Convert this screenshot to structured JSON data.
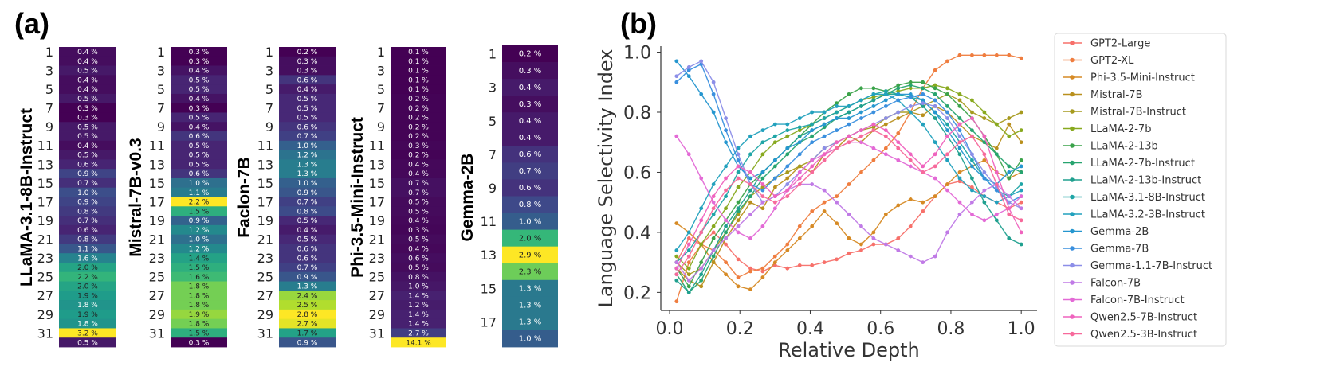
{
  "figure": {
    "panel_a_label": "(a)",
    "panel_b_label": "(b)"
  },
  "chart_data": [
    {
      "type": "heatmap",
      "title": "LLaMA-3.1-8B-Instruct",
      "row_tick_labels": [
        "1",
        "3",
        "5",
        "7",
        "9",
        "11",
        "13",
        "15",
        "17",
        "19",
        "21",
        "23",
        "25",
        "27",
        "29",
        "31"
      ],
      "values": [
        0.4,
        0.4,
        0.5,
        0.4,
        0.4,
        0.5,
        0.3,
        0.3,
        0.5,
        0.5,
        0.4,
        0.5,
        0.6,
        0.9,
        0.7,
        1.0,
        0.9,
        0.8,
        0.7,
        0.6,
        0.8,
        1.1,
        1.6,
        2.0,
        2.2,
        2.0,
        1.9,
        1.8,
        1.9,
        1.8,
        3.2,
        0.5
      ],
      "labels": [
        "0.4 %",
        "0.4 %",
        "0.5 %",
        "0.4 %",
        "0.4 %",
        "0.5 %",
        "0.3 %",
        "0.3 %",
        "0.5 %",
        "0.5 %",
        "0.4 %",
        "0.5 %",
        "0.6 %",
        "0.9 %",
        "0.7 %",
        "1.0 %",
        "0.9 %",
        "0.8 %",
        "0.7 %",
        "0.6 %",
        "0.8 %",
        "1.1 %",
        "1.6 %",
        "2.0 %",
        "2.2 %",
        "2.0 %",
        "1.9 %",
        "1.8 %",
        "1.9 %",
        "1.8 %",
        "3.2 %",
        "0.5 %"
      ]
    },
    {
      "type": "heatmap",
      "title": "Mistral-7B-v0.3",
      "row_tick_labels": [
        "1",
        "3",
        "5",
        "7",
        "9",
        "11",
        "13",
        "15",
        "17",
        "19",
        "21",
        "23",
        "25",
        "27",
        "29",
        "31"
      ],
      "values": [
        0.3,
        0.3,
        0.4,
        0.5,
        0.5,
        0.4,
        0.3,
        0.5,
        0.4,
        0.6,
        0.5,
        0.5,
        0.5,
        0.6,
        1.0,
        1.1,
        2.2,
        1.5,
        0.9,
        1.2,
        1.0,
        1.2,
        1.4,
        1.5,
        1.6,
        1.8,
        1.8,
        1.8,
        1.9,
        1.8,
        1.5,
        0.3
      ],
      "labels": [
        "0.3 %",
        "0.3 %",
        "0.4 %",
        "0.5 %",
        "0.5 %",
        "0.4 %",
        "0.3 %",
        "0.5 %",
        "0.4 %",
        "0.6 %",
        "0.5 %",
        "0.5 %",
        "0.5 %",
        "0.6 %",
        "1.0 %",
        "1.1 %",
        "2.2 %",
        "1.5 %",
        "0.9 %",
        "1.2 %",
        "1.0 %",
        "1.2 %",
        "1.4 %",
        "1.5 %",
        "1.6 %",
        "1.8 %",
        "1.8 %",
        "1.8 %",
        "1.9 %",
        "1.8 %",
        "1.5 %",
        "0.3 %"
      ]
    },
    {
      "type": "heatmap",
      "title": "Faclon-7B",
      "row_tick_labels": [
        "1",
        "3",
        "5",
        "7",
        "9",
        "11",
        "13",
        "15",
        "17",
        "19",
        "21",
        "23",
        "25",
        "27",
        "29",
        "31"
      ],
      "values": [
        0.2,
        0.3,
        0.3,
        0.6,
        0.4,
        0.5,
        0.5,
        0.5,
        0.6,
        0.7,
        1.0,
        1.2,
        1.3,
        1.3,
        1.0,
        0.9,
        0.7,
        0.8,
        0.5,
        0.4,
        0.5,
        0.6,
        0.6,
        0.7,
        0.9,
        1.3,
        2.4,
        2.5,
        2.8,
        2.7,
        1.7,
        0.9
      ],
      "labels": [
        "0.2 %",
        "0.3 %",
        "0.3 %",
        "0.6 %",
        "0.4 %",
        "0.5 %",
        "0.5 %",
        "0.5 %",
        "0.6 %",
        "0.7 %",
        "1.0 %",
        "1.2 %",
        "1.3 %",
        "1.3 %",
        "1.0 %",
        "0.9 %",
        "0.7 %",
        "0.8 %",
        "0.5 %",
        "0.4 %",
        "0.5 %",
        "0.6 %",
        "0.6 %",
        "0.7 %",
        "0.9 %",
        "1.3 %",
        "2.4 %",
        "2.5 %",
        "2.8 %",
        "2.7 %",
        "1.7 %",
        "0.9 %"
      ]
    },
    {
      "type": "heatmap",
      "title": "Phi-3.5-Mini-Instruct",
      "row_tick_labels": [
        "1",
        "3",
        "5",
        "7",
        "9",
        "11",
        "13",
        "15",
        "17",
        "19",
        "21",
        "23",
        "25",
        "27",
        "29",
        "31"
      ],
      "values": [
        0.1,
        0.1,
        0.1,
        0.1,
        0.1,
        0.2,
        0.2,
        0.2,
        0.2,
        0.2,
        0.3,
        0.2,
        0.4,
        0.4,
        0.7,
        0.7,
        0.5,
        0.5,
        0.4,
        0.3,
        0.5,
        0.4,
        0.6,
        0.5,
        0.8,
        1.0,
        1.4,
        1.2,
        1.4,
        1.4,
        2.7,
        14.1
      ],
      "labels": [
        "0.1 %",
        "0.1 %",
        "0.1 %",
        "0.1 %",
        "0.1 %",
        "0.2 %",
        "0.2 %",
        "0.2 %",
        "0.2 %",
        "0.2 %",
        "0.3 %",
        "0.2 %",
        "0.4 %",
        "0.4 %",
        "0.7 %",
        "0.7 %",
        "0.5 %",
        "0.5 %",
        "0.4 %",
        "0.3 %",
        "0.5 %",
        "0.4 %",
        "0.6 %",
        "0.5 %",
        "0.8 %",
        "1.0 %",
        "1.4 %",
        "1.2 %",
        "1.4 %",
        "1.4 %",
        "2.7 %",
        "14.1 %"
      ]
    },
    {
      "type": "heatmap",
      "title": "Gemma-2B",
      "row_tick_labels": [
        "1",
        "3",
        "5",
        "7",
        "9",
        "11",
        "13",
        "15",
        "17"
      ],
      "values": [
        0.2,
        0.3,
        0.4,
        0.3,
        0.4,
        0.4,
        0.6,
        0.7,
        0.6,
        0.8,
        1.0,
        2.0,
        2.9,
        2.3,
        1.3,
        1.3,
        1.3,
        1.0
      ],
      "labels": [
        "0.2 %",
        "0.3 %",
        "0.4 %",
        "0.3 %",
        "0.4 %",
        "0.4 %",
        "0.6 %",
        "0.7 %",
        "0.6 %",
        "0.8 %",
        "1.0 %",
        "2.0 %",
        "2.9 %",
        "2.3 %",
        "1.3 %",
        "1.3 %",
        "1.3 %",
        "1.0 %"
      ]
    },
    {
      "type": "line",
      "xlabel": "Relative Depth",
      "ylabel": "Language Selectivity Index",
      "xlim": [
        0,
        1.02
      ],
      "ylim": [
        0.14,
        1.02
      ],
      "xticks": [
        0.0,
        0.2,
        0.4,
        0.6,
        0.8,
        1.0
      ],
      "xtick_labels": [
        "0.0",
        "0.2",
        "0.4",
        "0.6",
        "0.8",
        "1.0"
      ],
      "yticks": [
        0.2,
        0.4,
        0.6,
        0.8,
        1.0
      ],
      "ytick_labels": [
        "0.2",
        "0.4",
        "0.6",
        "0.8",
        "1.0"
      ],
      "legend_position": "outside right",
      "series": [
        {
          "name": "GPT2-Large",
          "color": "#f7706a",
          "y": [
            0.3,
            0.38,
            0.36,
            0.4,
            0.36,
            0.31,
            0.28,
            0.27,
            0.29,
            0.28,
            0.29,
            0.29,
            0.3,
            0.31,
            0.33,
            0.34,
            0.36,
            0.36,
            0.38,
            0.42,
            0.47,
            0.52,
            0.56,
            0.57,
            0.55,
            0.52,
            0.5,
            0.48,
            0.5
          ]
        },
        {
          "name": "GPT2-XL",
          "color": "#ef7d3f",
          "y": [
            0.17,
            0.3,
            0.36,
            0.34,
            0.3,
            0.25,
            0.27,
            0.28,
            0.32,
            0.36,
            0.42,
            0.47,
            0.5,
            0.52,
            0.56,
            0.6,
            0.64,
            0.68,
            0.73,
            0.8,
            0.88,
            0.94,
            0.97,
            0.99,
            0.99,
            0.99,
            0.99,
            0.99,
            0.98
          ]
        },
        {
          "name": "Phi-3.5-Mini-Instruct",
          "color": "#d68a25",
          "y": [
            0.43,
            0.4,
            0.36,
            0.3,
            0.26,
            0.22,
            0.21,
            0.25,
            0.3,
            0.34,
            0.38,
            0.42,
            0.47,
            0.43,
            0.38,
            0.36,
            0.4,
            0.46,
            0.49,
            0.51,
            0.5,
            0.52,
            0.56,
            0.6,
            0.62,
            0.64,
            0.6,
            0.58,
            0.6
          ]
        },
        {
          "name": "Mistral-7B",
          "color": "#b9901d",
          "y": [
            0.28,
            0.24,
            0.22,
            0.3,
            0.38,
            0.44,
            0.5,
            0.48,
            0.55,
            0.58,
            0.62,
            0.6,
            0.66,
            0.68,
            0.72,
            0.7,
            0.74,
            0.76,
            0.78,
            0.8,
            0.79,
            0.82,
            0.8,
            0.76,
            0.72,
            0.7,
            0.68,
            0.76,
            0.7
          ]
        },
        {
          "name": "Mistral-7B-Instruct",
          "color": "#a69a1e",
          "y": [
            0.3,
            0.26,
            0.28,
            0.34,
            0.4,
            0.46,
            0.52,
            0.55,
            0.58,
            0.6,
            0.62,
            0.64,
            0.68,
            0.7,
            0.72,
            0.74,
            0.75,
            0.78,
            0.8,
            0.8,
            0.82,
            0.84,
            0.86,
            0.84,
            0.8,
            0.78,
            0.76,
            0.78,
            0.8
          ]
        },
        {
          "name": "LLaMA-2-7b",
          "color": "#88a91f",
          "y": [
            0.32,
            0.28,
            0.36,
            0.42,
            0.48,
            0.55,
            0.6,
            0.66,
            0.7,
            0.72,
            0.74,
            0.76,
            0.78,
            0.8,
            0.82,
            0.84,
            0.85,
            0.86,
            0.87,
            0.88,
            0.88,
            0.89,
            0.88,
            0.86,
            0.84,
            0.8,
            0.76,
            0.72,
            0.74
          ]
        },
        {
          "name": "LLaMA-2-13b",
          "color": "#3ba34a",
          "y": [
            0.28,
            0.22,
            0.3,
            0.38,
            0.44,
            0.5,
            0.56,
            0.6,
            0.64,
            0.68,
            0.72,
            0.76,
            0.8,
            0.83,
            0.86,
            0.88,
            0.88,
            0.87,
            0.89,
            0.9,
            0.9,
            0.88,
            0.86,
            0.82,
            0.78,
            0.72,
            0.66,
            0.58,
            0.64
          ]
        },
        {
          "name": "LLaMA-2-7b-Instruct",
          "color": "#27a46f",
          "y": [
            0.26,
            0.2,
            0.24,
            0.32,
            0.4,
            0.47,
            0.52,
            0.58,
            0.62,
            0.66,
            0.7,
            0.72,
            0.75,
            0.78,
            0.8,
            0.82,
            0.84,
            0.86,
            0.88,
            0.89,
            0.88,
            0.86,
            0.82,
            0.78,
            0.74,
            0.7,
            0.66,
            0.62,
            0.6
          ]
        },
        {
          "name": "LLaMA-2-13b-Instruct",
          "color": "#20a08f",
          "y": [
            0.24,
            0.2,
            0.26,
            0.34,
            0.42,
            0.48,
            0.54,
            0.6,
            0.64,
            0.68,
            0.72,
            0.74,
            0.76,
            0.78,
            0.8,
            0.82,
            0.84,
            0.86,
            0.86,
            0.85,
            0.82,
            0.78,
            0.72,
            0.66,
            0.58,
            0.5,
            0.44,
            0.38,
            0.36
          ]
        },
        {
          "name": "LLaMA-3.1-8B-Instruct",
          "color": "#1fa5a6",
          "y": [
            0.3,
            0.34,
            0.4,
            0.46,
            0.52,
            0.6,
            0.66,
            0.7,
            0.72,
            0.74,
            0.75,
            0.76,
            0.78,
            0.8,
            0.82,
            0.84,
            0.86,
            0.87,
            0.86,
            0.85,
            0.84,
            0.8,
            0.76,
            0.7,
            0.64,
            0.58,
            0.54,
            0.52,
            0.56
          ]
        },
        {
          "name": "LLaMA-3.2-3B-Instruct",
          "color": "#22a1bd",
          "y": [
            0.34,
            0.4,
            0.48,
            0.56,
            0.62,
            0.68,
            0.72,
            0.74,
            0.76,
            0.76,
            0.78,
            0.8,
            0.8,
            0.82,
            0.82,
            0.84,
            0.86,
            0.86,
            0.84,
            0.8,
            0.76,
            0.7,
            0.64,
            0.58,
            0.54,
            0.52,
            0.5,
            0.52,
            0.54
          ]
        },
        {
          "name": "Gemma-2B",
          "color": "#2596cf",
          "y": [
            0.97,
            0.92,
            0.86,
            0.8,
            0.7,
            0.62,
            0.58,
            0.6,
            0.64,
            0.68,
            0.7,
            0.74,
            0.76,
            0.78,
            0.78,
            0.8,
            0.82,
            0.84,
            0.86,
            0.86,
            0.84,
            0.8,
            0.74,
            0.68,
            0.62,
            0.58,
            0.56,
            0.6,
            0.62
          ]
        },
        {
          "name": "Gemma-7B",
          "color": "#3a8fde",
          "y": [
            0.9,
            0.94,
            0.96,
            0.86,
            0.74,
            0.64,
            0.56,
            0.54,
            0.58,
            0.62,
            0.66,
            0.7,
            0.72,
            0.74,
            0.76,
            0.78,
            0.8,
            0.82,
            0.84,
            0.85,
            0.86,
            0.84,
            0.8,
            0.74,
            0.66,
            0.58,
            0.54,
            0.5,
            0.52
          ]
        },
        {
          "name": "Gemma-1.1-7B-Instruct",
          "color": "#8c8ee8",
          "y": [
            0.92,
            0.95,
            0.97,
            0.9,
            0.78,
            0.66,
            0.56,
            0.5,
            0.52,
            0.56,
            0.6,
            0.64,
            0.68,
            0.7,
            0.72,
            0.74,
            0.76,
            0.78,
            0.8,
            0.82,
            0.83,
            0.82,
            0.78,
            0.72,
            0.66,
            0.6,
            0.55,
            0.5,
            0.48
          ]
        },
        {
          "name": "Falcon-7B",
          "color": "#c07ae6",
          "y": [
            0.3,
            0.24,
            0.28,
            0.34,
            0.38,
            0.42,
            0.46,
            0.5,
            0.52,
            0.54,
            0.56,
            0.56,
            0.54,
            0.5,
            0.46,
            0.42,
            0.38,
            0.36,
            0.34,
            0.32,
            0.3,
            0.32,
            0.4,
            0.46,
            0.5,
            0.54,
            0.56,
            0.52,
            0.48
          ]
        },
        {
          "name": "Falcon-7B-Instruct",
          "color": "#e36ad6",
          "y": [
            0.72,
            0.66,
            0.58,
            0.5,
            0.44,
            0.4,
            0.38,
            0.42,
            0.48,
            0.54,
            0.6,
            0.64,
            0.66,
            0.68,
            0.7,
            0.7,
            0.68,
            0.66,
            0.64,
            0.62,
            0.6,
            0.58,
            0.54,
            0.5,
            0.46,
            0.44,
            0.46,
            0.48,
            0.52
          ]
        },
        {
          "name": "Qwen2.5-7B-Instruct",
          "color": "#ef63be",
          "y": [
            0.28,
            0.36,
            0.44,
            0.52,
            0.58,
            0.62,
            0.6,
            0.56,
            0.52,
            0.54,
            0.58,
            0.62,
            0.66,
            0.7,
            0.72,
            0.74,
            0.76,
            0.74,
            0.7,
            0.66,
            0.62,
            0.66,
            0.72,
            0.76,
            0.78,
            0.72,
            0.6,
            0.48,
            0.4
          ]
        },
        {
          "name": "Qwen2.5-3B-Instruct",
          "color": "#f7699b",
          "y": [
            0.26,
            0.32,
            0.4,
            0.48,
            0.54,
            0.58,
            0.56,
            0.52,
            0.5,
            0.52,
            0.56,
            0.6,
            0.64,
            0.68,
            0.7,
            0.72,
            0.74,
            0.72,
            0.68,
            0.64,
            0.6,
            0.62,
            0.66,
            0.7,
            0.72,
            0.66,
            0.56,
            0.46,
            0.44
          ]
        }
      ]
    }
  ]
}
